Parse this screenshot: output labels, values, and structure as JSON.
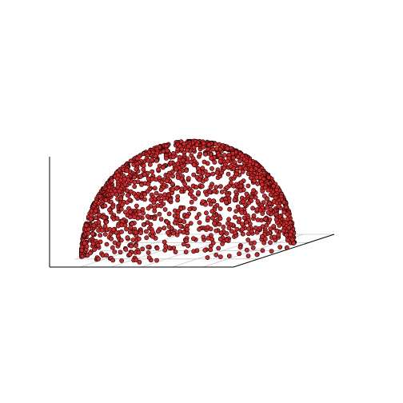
{
  "chart_data": {
    "type": "scatter",
    "projection": "3d",
    "title": "",
    "xlabel": "",
    "ylabel": "",
    "zlabel": "",
    "xlim": [
      -1,
      1
    ],
    "ylim": [
      -1,
      1
    ],
    "zlim": [
      0,
      1
    ],
    "grid": true,
    "legend": "none",
    "point_count": 1500,
    "shape": "points sampled over a unit hemisphere (upper half, z >= 0)",
    "colors": {
      "marker_fill": "#d62728",
      "marker_edge": "#000000",
      "axis_line": "#000000",
      "grid_line": "#c8c8c8",
      "background": "#ffffff"
    }
  }
}
